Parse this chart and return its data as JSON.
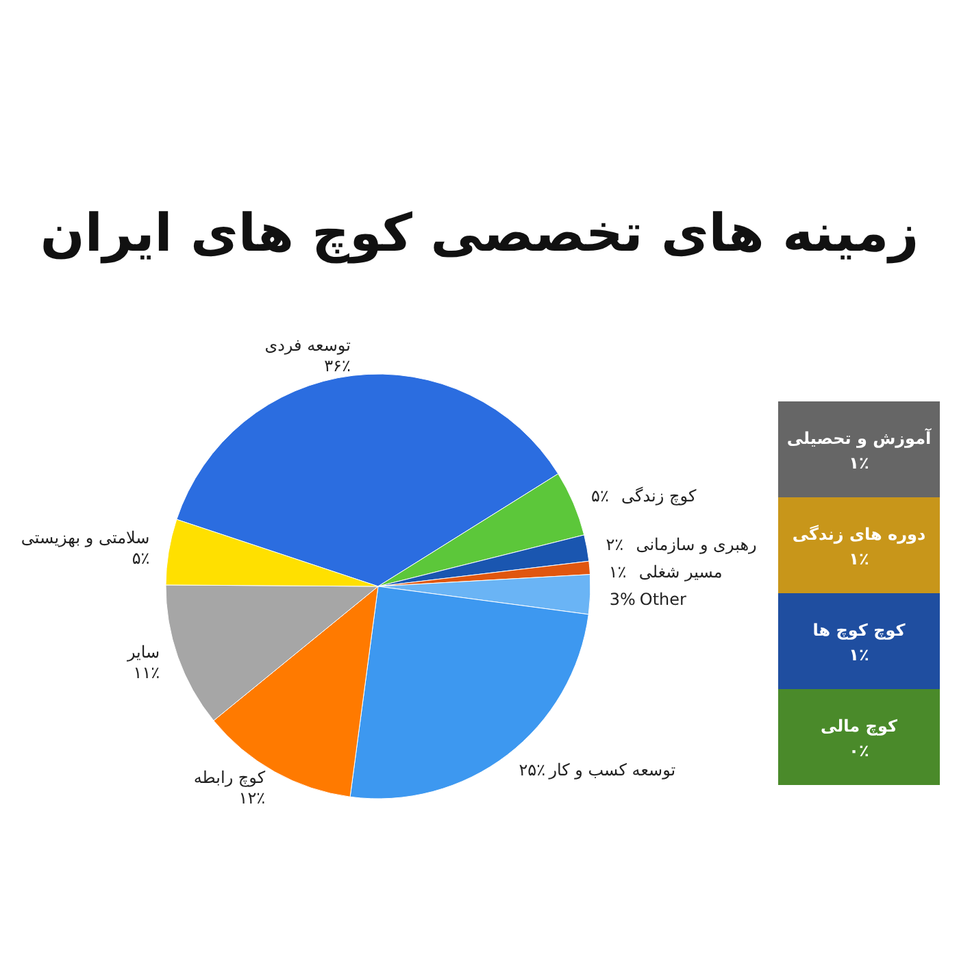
{
  "chart_data": [
    {
      "type": "pie",
      "title": "زمینه های تخصصی کوچ های ایران",
      "categories": [
        "توسعه فردی",
        "کوچ زندگی",
        "رهبری و سازمانی",
        "مسیر شغلی",
        "Other",
        "توسعه کسب و کار",
        "کوچ رابطه",
        "سایر",
        "سلامتی و بهزیستی"
      ],
      "values": [
        36,
        5,
        2,
        1,
        3,
        25,
        12,
        11,
        5
      ],
      "value_labels": [
        "۳۶٪",
        "۵٪",
        "۲٪",
        "۱٪",
        "3%",
        "۲۵٪",
        "۱۲٪",
        "۱۱٪",
        "۵٪"
      ],
      "colors": [
        "#2b6de0",
        "#5cc73a",
        "#1a56b0",
        "#e0560f",
        "#6ab4f5",
        "#3d98f0",
        "#ff7a00",
        "#a6a6a6",
        "#ffe000"
      ]
    },
    {
      "type": "other",
      "categories": [
        "آموزش و تحصیلی",
        "دوره های زندگی",
        "کوچ کوچ ها",
        "کوچ مالی"
      ],
      "values": [
        1,
        1,
        1,
        0
      ],
      "value_labels": [
        "۱٪",
        "۱٪",
        "۱٪",
        "۰٪"
      ],
      "colors": [
        "#666666",
        "#c8961a",
        "#1f4ea0",
        "#4a8a2a"
      ]
    }
  ]
}
